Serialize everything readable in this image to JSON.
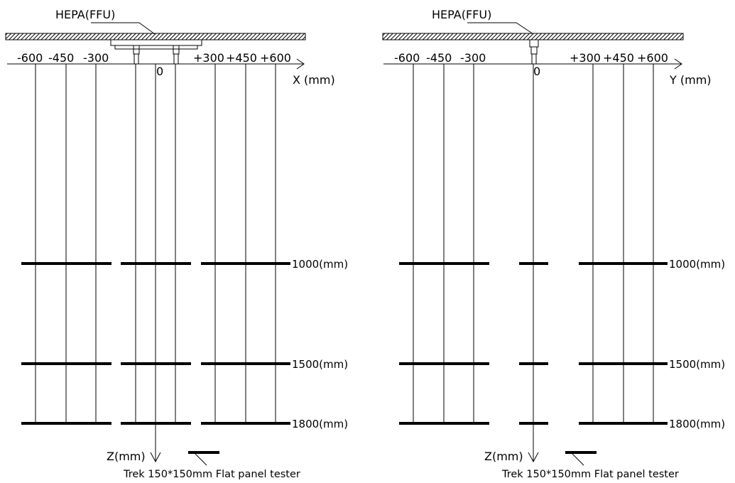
{
  "colors": {
    "line": "#000000",
    "background": "#ffffff"
  },
  "panels": [
    {
      "id": "x",
      "hepa_label": "HEPA(FFU)",
      "tick_labels": [
        "-600",
        "-450",
        "-300",
        "0",
        "+300",
        "+450",
        "+600"
      ],
      "axis_label": "X (mm)",
      "z_label": "Z(mm)",
      "height_labels": [
        "1000(mm)",
        "1500(mm)",
        "1800(mm)"
      ],
      "caption": "Trek 150*150mm Flat panel tester"
    },
    {
      "id": "y",
      "hepa_label": "HEPA(FFU)",
      "tick_labels": [
        "-600",
        "-450",
        "-300",
        "0",
        "+300",
        "+450",
        "+600"
      ],
      "axis_label": "Y (mm)",
      "z_label": "Z(mm)",
      "height_labels": [
        "1000(mm)",
        "1500(mm)",
        "1800(mm)"
      ],
      "caption": "Trek 150*150mm Flat panel tester"
    }
  ]
}
